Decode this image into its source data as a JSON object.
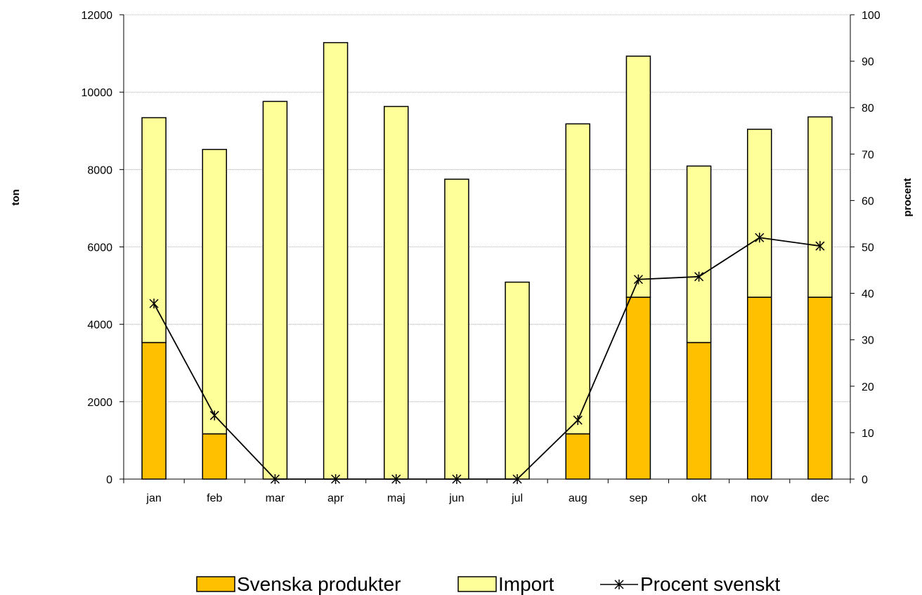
{
  "chart_data": {
    "type": "bar",
    "stacked": true,
    "categories": [
      "jan",
      "feb",
      "mar",
      "apr",
      "maj",
      "jun",
      "jul",
      "aug",
      "sep",
      "okt",
      "nov",
      "dec"
    ],
    "series": [
      {
        "name": "Svenska produkter",
        "type": "bar",
        "axis": "left",
        "color": "#FFC000",
        "values": [
          3530,
          1170,
          0,
          0,
          0,
          0,
          0,
          1170,
          4700,
          3530,
          4700,
          4700
        ]
      },
      {
        "name": "Import",
        "type": "bar",
        "axis": "left",
        "color": "#FFFF99",
        "values": [
          5810,
          7350,
          9760,
          11280,
          9630,
          7750,
          5090,
          8010,
          6230,
          4560,
          4340,
          4660
        ]
      },
      {
        "name": "Procent svenskt",
        "type": "line",
        "axis": "right",
        "color": "#000000",
        "values": [
          37.8,
          13.7,
          0,
          0,
          0,
          0,
          0,
          12.7,
          43.0,
          43.6,
          52.0,
          50.2
        ]
      }
    ],
    "ylabel": "ton",
    "y2label": "procent",
    "ylim": [
      0,
      12000
    ],
    "yticks": [
      "0",
      "2000",
      "4000",
      "6000",
      "8000",
      "10000",
      "12000"
    ],
    "y2lim": [
      0,
      100
    ],
    "y2ticks": [
      "0",
      "10",
      "20",
      "30",
      "40",
      "50",
      "60",
      "70",
      "80",
      "90",
      "100"
    ],
    "grid": true,
    "legend_position": "bottom"
  }
}
